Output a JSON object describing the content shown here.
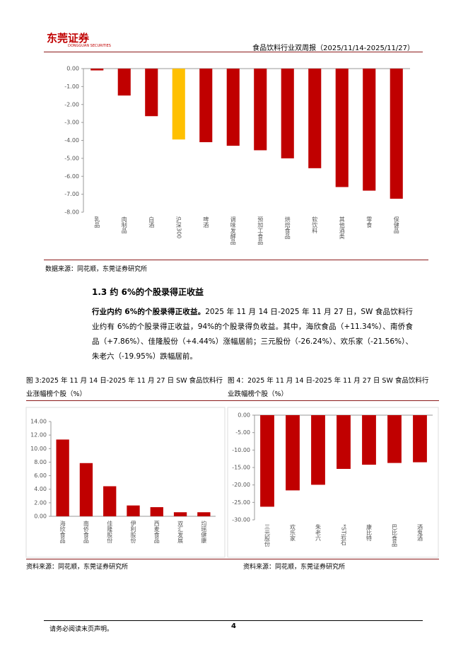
{
  "header": {
    "logo": "东莞证券",
    "logo_sub": "DONGGUAN SECURITIES",
    "title": "食品饮料行业双周报（2025/11/14-2025/11/27）"
  },
  "chart_data": [
    {
      "type": "bar",
      "categories": [
        "乳品",
        "肉制品",
        "白酒",
        "沪深300",
        "啤酒",
        "调味发酵品",
        "预加工食品",
        "烘焙食品",
        "软饮料",
        "其他酒类",
        "零食",
        "保健品"
      ],
      "values": [
        -0.1,
        -1.5,
        -2.65,
        -3.95,
        -4.1,
        -4.3,
        -4.55,
        -5.0,
        -5.55,
        -6.6,
        -6.8,
        -7.25
      ],
      "colors": [
        "#c00000",
        "#c00000",
        "#c00000",
        "#ffc000",
        "#c00000",
        "#c00000",
        "#c00000",
        "#c00000",
        "#c00000",
        "#c00000",
        "#c00000",
        "#c00000"
      ],
      "ylim": [
        -8,
        0
      ],
      "yticks": [
        {
          "value": 0,
          "label": "0.00"
        },
        {
          "value": -1,
          "label": "-1.00"
        },
        {
          "value": -2,
          "label": "-2.00"
        },
        {
          "value": -3,
          "label": "-3.00"
        },
        {
          "value": -4,
          "label": "-4.00"
        },
        {
          "value": -5,
          "label": "-5.00"
        },
        {
          "value": -6,
          "label": "-6.00"
        },
        {
          "value": -7,
          "label": "-7.00"
        },
        {
          "value": -8,
          "label": "-8.00"
        }
      ]
    },
    {
      "type": "bar",
      "categories": [
        "海欣食品",
        "南侨食品",
        "佳隆股份",
        "伊利股份",
        "西麦食品",
        "双汇发展",
        "均瑶健康"
      ],
      "values": [
        11.34,
        7.86,
        4.44,
        1.6,
        1.35,
        0.6,
        0.6
      ],
      "color": "#c00000",
      "ylim": [
        0,
        14
      ],
      "yticks": [
        {
          "value": 0,
          "label": "0.00"
        },
        {
          "value": 2,
          "label": "2.00"
        },
        {
          "value": 4,
          "label": "4.00"
        },
        {
          "value": 6,
          "label": "6.00"
        },
        {
          "value": 8,
          "label": "8.00"
        },
        {
          "value": 10,
          "label": "10.00"
        },
        {
          "value": 12,
          "label": "12.00"
        },
        {
          "value": 14,
          "label": "14.00"
        }
      ]
    },
    {
      "type": "bar",
      "categories": [
        "三元股份",
        "欢乐家",
        "朱老六",
        "*ST岩石",
        "康比特",
        "巴比食品",
        "酒鬼酒"
      ],
      "values": [
        -26.24,
        -21.56,
        -19.95,
        -15.4,
        -14.2,
        -13.7,
        -13.5
      ],
      "color": "#c00000",
      "ylim": [
        -30,
        0
      ],
      "yticks": [
        {
          "value": 0,
          "label": "0.00"
        },
        {
          "value": -5,
          "label": "-5.00"
        },
        {
          "value": -10,
          "label": "-10.00"
        },
        {
          "value": -15,
          "label": "-15.00"
        },
        {
          "value": -20,
          "label": "-20.00"
        },
        {
          "value": -25,
          "label": "-25.00"
        },
        {
          "value": -30,
          "label": "-30.00"
        }
      ]
    }
  ],
  "source1": "数据来源：同花顺，东莞证券研究所",
  "section": {
    "heading": "1.3 约 6%的个股录得正收益",
    "lead": "行业内约 6%的个股录得正收益。",
    "body": "2025 年 11 月 14 日-2025 年 11 月 27 日，SW 食品饮料行业约有 6%的个股录得正收益，94%的个股录得负收益。其中，海欣食品（+11.34%）、南侨食品（+7.86%）、佳隆股份（+4.44%）涨幅居前；三元股份（-26.24%）、欢乐家（-21.56%）、朱老六（-19.95%）跌幅居前。"
  },
  "fig3": {
    "caption": "图 3:2025 年 11 月 14 日-2025 年 11 月 27 日 SW 食品饮料行业涨幅榜个股（%）",
    "source": "资料来源：同花顺，东莞证券研究所"
  },
  "fig4": {
    "caption": "图 4：2025 年 11 月 14 日-2025 年 11 月 27 日 SW 食品饮料行业跌幅榜个股（%）",
    "source": "资料来源：同花顺，东莞证券研究所"
  },
  "footer": {
    "note": "请务必阅读末页声明。",
    "page": "4"
  }
}
